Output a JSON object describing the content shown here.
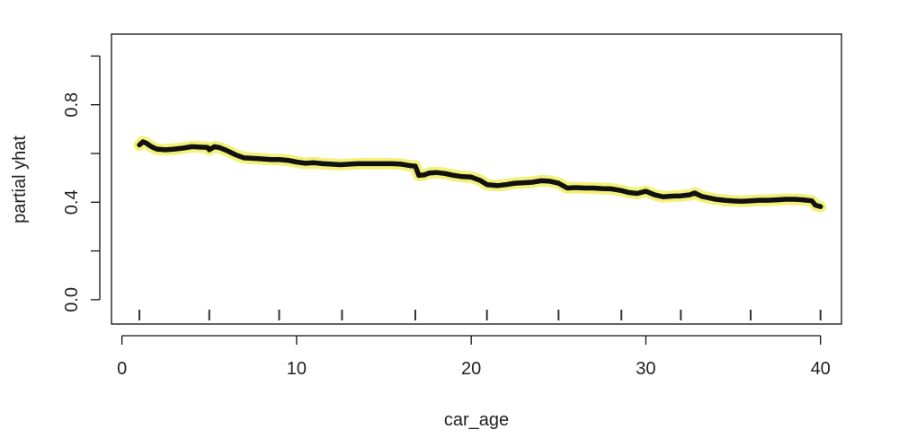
{
  "chart_data": {
    "type": "line",
    "title": "",
    "xlabel": "car_age",
    "ylabel": "partial yhat",
    "xlim": [
      -0.6,
      41.2
    ],
    "ylim": [
      -0.1,
      1.09
    ],
    "x_ticks": [
      0,
      10,
      20,
      30,
      40
    ],
    "x_tick_labels": [
      "0",
      "10",
      "20",
      "30",
      "40"
    ],
    "y_ticks": [
      0.0,
      0.4,
      0.8
    ],
    "y_tick_labels": [
      "0.0",
      "0.4",
      "0.8"
    ],
    "y_minor_ticks": [
      0.2,
      0.6,
      1.0
    ],
    "grid": false,
    "legend": "none",
    "colors": {
      "line": "#111111",
      "halo": "#f2f27a",
      "rug": "#333333"
    },
    "rug": [
      1,
      5,
      9,
      12.6,
      16.8,
      20.9,
      25,
      28.6,
      32,
      36,
      40
    ],
    "series": [
      {
        "x": [
          1,
          1.2,
          1.4,
          1.6,
          1.8,
          2,
          2.5,
          3,
          3.5,
          4,
          4.5,
          4.9,
          5,
          5.3,
          5.6,
          6,
          6.5,
          7,
          7.5,
          8,
          8.5,
          9,
          9.5,
          10,
          10.5,
          11,
          11.5,
          12,
          12.5,
          13,
          13.5,
          14,
          14.5,
          15,
          15.5,
          16,
          16.5,
          16.8,
          17,
          17.3,
          17.6,
          18,
          18.5,
          19,
          19.5,
          20,
          20.5,
          20.9,
          21.5,
          22,
          22.5,
          23,
          23.5,
          24,
          24.5,
          25,
          25.5,
          26,
          26.5,
          27,
          27.5,
          28,
          28.6,
          29,
          29.5,
          30,
          30.5,
          31,
          31.5,
          32,
          32.5,
          32.8,
          33.2,
          33.6,
          34,
          34.5,
          35,
          35.5,
          36,
          36.5,
          37,
          37.5,
          38,
          38.5,
          39,
          39.5,
          39.7,
          40
        ],
        "values": [
          0.635,
          0.648,
          0.642,
          0.632,
          0.624,
          0.618,
          0.615,
          0.618,
          0.622,
          0.628,
          0.626,
          0.625,
          0.615,
          0.628,
          0.624,
          0.612,
          0.595,
          0.582,
          0.58,
          0.578,
          0.575,
          0.575,
          0.572,
          0.565,
          0.56,
          0.562,
          0.558,
          0.556,
          0.554,
          0.556,
          0.558,
          0.558,
          0.558,
          0.558,
          0.558,
          0.556,
          0.55,
          0.548,
          0.51,
          0.512,
          0.52,
          0.522,
          0.518,
          0.51,
          0.505,
          0.503,
          0.49,
          0.472,
          0.468,
          0.472,
          0.478,
          0.48,
          0.482,
          0.488,
          0.486,
          0.478,
          0.458,
          0.46,
          0.458,
          0.458,
          0.456,
          0.455,
          0.448,
          0.44,
          0.436,
          0.445,
          0.43,
          0.422,
          0.425,
          0.426,
          0.43,
          0.438,
          0.424,
          0.418,
          0.412,
          0.408,
          0.405,
          0.404,
          0.406,
          0.408,
          0.408,
          0.41,
          0.412,
          0.412,
          0.41,
          0.406,
          0.388,
          0.382
        ]
      }
    ]
  }
}
